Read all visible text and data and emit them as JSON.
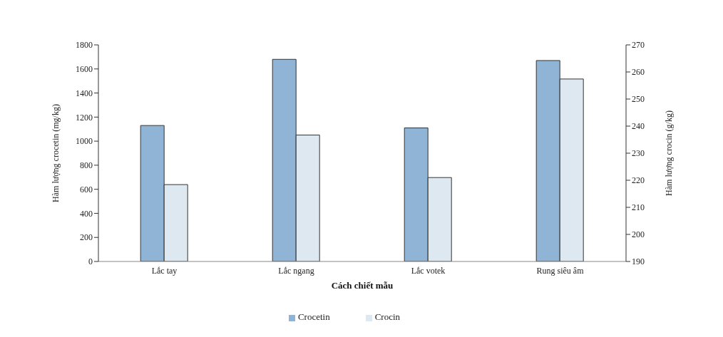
{
  "chart_data": {
    "type": "bar",
    "xlabel": "Cách chiết mẫu",
    "ylabel": "Hàm lượng crocetin (mg/kg)",
    "y2label": "Hàm lượng crocin (g/kg)",
    "categories": [
      "Lắc tay",
      "Lắc ngang",
      "Lắc votek",
      "Rung siêu âm"
    ],
    "series": [
      {
        "name": "Crocetin",
        "color": "#8fb4d6",
        "values": [
          1130,
          1680,
          1110,
          1670
        ]
      },
      {
        "name": "Crocin",
        "color": "#dde8f0",
        "axis": "y2",
        "values": [
          218.4,
          236.7,
          221,
          257.4
        ]
      }
    ],
    "ylim": [
      0,
      1800
    ],
    "yticks": [
      0,
      200,
      400,
      600,
      800,
      1000,
      1200,
      1400,
      1600,
      1800
    ],
    "y2lim": [
      190,
      270
    ],
    "y2ticks": [
      190,
      200,
      210,
      220,
      230,
      240,
      250,
      260,
      270
    ],
    "grid": false,
    "legend": "bottom"
  }
}
